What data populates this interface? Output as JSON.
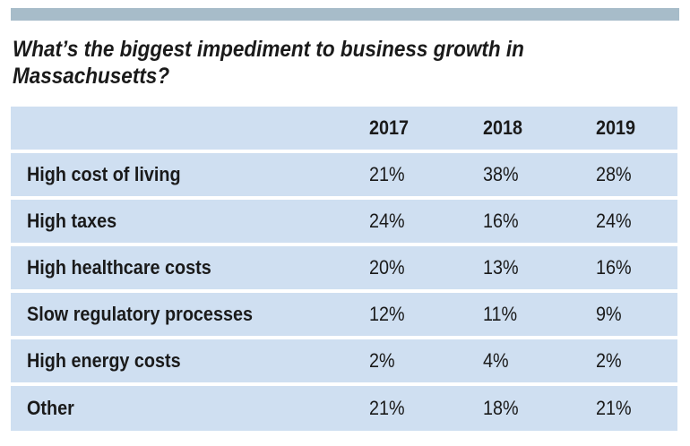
{
  "chart_data": {
    "type": "table",
    "title": "What’s the biggest impediment to business growth in Massachusetts?",
    "columns": [
      "2017",
      "2018",
      "2019"
    ],
    "rows": [
      {
        "label": "High cost of living",
        "values": [
          "21%",
          "38%",
          "28%"
        ]
      },
      {
        "label": "High taxes",
        "values": [
          "24%",
          "16%",
          "24%"
        ]
      },
      {
        "label": "High healthcare costs",
        "values": [
          "20%",
          "13%",
          "16%"
        ]
      },
      {
        "label": "Slow regulatory processes",
        "values": [
          "12%",
          "11%",
          "9%"
        ]
      },
      {
        "label": "High energy costs",
        "values": [
          "2%",
          "4%",
          "2%"
        ]
      },
      {
        "label": "Other",
        "values": [
          "21%",
          "18%",
          "21%"
        ]
      }
    ]
  },
  "colors": {
    "top_band": "#a7bcc9",
    "row_fill": "#cfdff1",
    "text": "#1a1a1a"
  }
}
